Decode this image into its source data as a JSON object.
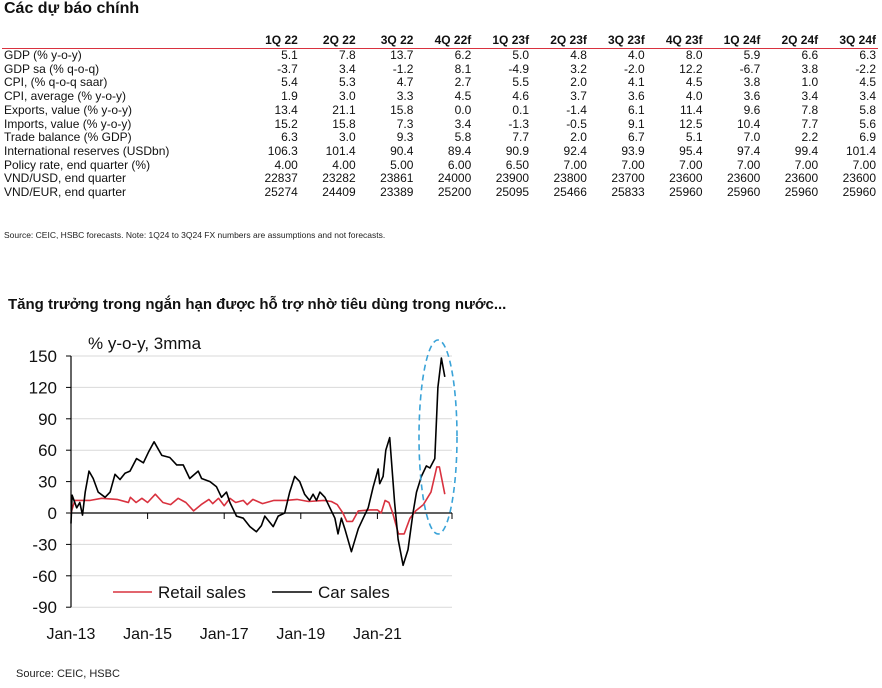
{
  "header": {
    "title": "Các dự báo chính"
  },
  "forecast_table": {
    "columns": [
      "1Q 22",
      "2Q 22",
      "3Q 22",
      "4Q 22f",
      "1Q 23f",
      "2Q 23f",
      "3Q 23f",
      "4Q 23f",
      "1Q 24f",
      "2Q 24f",
      "3Q 24f"
    ],
    "rows": [
      {
        "label": "GDP (% y-o-y)",
        "values": [
          "5.1",
          "7.8",
          "13.7",
          "6.2",
          "5.0",
          "4.8",
          "4.0",
          "8.0",
          "5.9",
          "6.6",
          "6.3"
        ]
      },
      {
        "label": "GDP sa (% q-o-q)",
        "values": [
          "-3.7",
          "3.4",
          "-1.2",
          "8.1",
          "-4.9",
          "3.2",
          "-2.0",
          "12.2",
          "-6.7",
          "3.8",
          "-2.2"
        ]
      },
      {
        "label": "CPI, (% q-o-q saar)",
        "values": [
          "5.4",
          "5.3",
          "4.7",
          "2.7",
          "5.5",
          "2.0",
          "4.1",
          "4.5",
          "3.8",
          "1.0",
          "4.5"
        ]
      },
      {
        "label": "CPI, average (% y-o-y)",
        "values": [
          "1.9",
          "3.0",
          "3.3",
          "4.5",
          "4.6",
          "3.7",
          "3.6",
          "4.0",
          "3.6",
          "3.4",
          "3.4"
        ]
      },
      {
        "label": "Exports, value (% y-o-y)",
        "values": [
          "13.4",
          "21.1",
          "15.8",
          "0.0",
          "0.1",
          "-1.4",
          "6.1",
          "11.4",
          "9.6",
          "7.8",
          "5.8"
        ]
      },
      {
        "label": "Imports, value (% y-o-y)",
        "values": [
          "15.2",
          "15.8",
          "7.3",
          "3.4",
          "-1.3",
          "-0.5",
          "9.1",
          "12.5",
          "10.4",
          "7.7",
          "5.6"
        ]
      },
      {
        "label": "Trade balance (% GDP)",
        "values": [
          "6.3",
          "3.0",
          "9.3",
          "5.8",
          "7.7",
          "2.0",
          "6.7",
          "5.1",
          "7.0",
          "2.2",
          "6.9"
        ]
      },
      {
        "label": "International reserves (USDbn)",
        "values": [
          "106.3",
          "101.4",
          "90.4",
          "89.4",
          "90.9",
          "92.4",
          "93.9",
          "95.4",
          "97.4",
          "99.4",
          "101.4"
        ]
      },
      {
        "label": "Policy rate, end quarter (%)",
        "values": [
          "4.00",
          "4.00",
          "5.00",
          "6.00",
          "6.50",
          "7.00",
          "7.00",
          "7.00",
          "7.00",
          "7.00",
          "7.00"
        ]
      },
      {
        "label": "VND/USD, end quarter",
        "values": [
          "22837",
          "23282",
          "23861",
          "24000",
          "23900",
          "23800",
          "23700",
          "23600",
          "23600",
          "23600",
          "23600"
        ]
      },
      {
        "label": "VND/EUR, end quarter",
        "values": [
          "25274",
          "24409",
          "23389",
          "25200",
          "25095",
          "25466",
          "25833",
          "25960",
          "25960",
          "25960",
          "25960"
        ]
      }
    ],
    "source": "Source: CEIC, HSBC forecasts. Note: 1Q24 to 3Q24 FX numbers are assumptions and not forecasts."
  },
  "chart_section": {
    "title": "Tăng trưởng trong ngắn hạn được hỗ trợ nhờ tiêu dùng trong nước...",
    "source": "Source: CEIC, HSBC"
  },
  "chart_data": {
    "type": "line",
    "title": "",
    "ylabel": "% y-o-y, 3mma",
    "xlabel": "",
    "ylim": [
      -90,
      150
    ],
    "yticks": [
      "150",
      "120",
      "90",
      "60",
      "30",
      "0",
      "-30",
      "-60",
      "-90"
    ],
    "xticks": [
      {
        "label": "Jan-13",
        "x": 2013
      },
      {
        "label": "Jan-15",
        "x": 2015
      },
      {
        "label": "Jan-17",
        "x": 2017
      },
      {
        "label": "Jan-19",
        "x": 2019
      },
      {
        "label": "Jan-21",
        "x": 2021
      }
    ],
    "xlim": [
      2013,
      2022.95
    ],
    "grid": true,
    "legend_position": "bottom-inside",
    "highlight": "dashed ellipse around latest 2022 values",
    "series": [
      {
        "name": "Retail sales",
        "color": "#d9323f",
        "points": [
          [
            2013.0,
            0
          ],
          [
            2013.1,
            12
          ],
          [
            2013.5,
            12
          ],
          [
            2013.8,
            14
          ],
          [
            2014.2,
            13
          ],
          [
            2014.5,
            10
          ],
          [
            2014.55,
            15
          ],
          [
            2014.7,
            10
          ],
          [
            2014.85,
            14
          ],
          [
            2015.0,
            10
          ],
          [
            2015.2,
            18
          ],
          [
            2015.4,
            10
          ],
          [
            2015.6,
            8
          ],
          [
            2015.8,
            14
          ],
          [
            2016.0,
            10
          ],
          [
            2016.2,
            2
          ],
          [
            2016.4,
            8
          ],
          [
            2016.6,
            13
          ],
          [
            2016.7,
            9
          ],
          [
            2016.85,
            14
          ],
          [
            2017.0,
            7
          ],
          [
            2017.15,
            14
          ],
          [
            2017.3,
            10
          ],
          [
            2017.5,
            12
          ],
          [
            2017.6,
            8
          ],
          [
            2017.75,
            13
          ],
          [
            2018.0,
            9
          ],
          [
            2018.3,
            12
          ],
          [
            2018.6,
            12
          ],
          [
            2018.9,
            13
          ],
          [
            2019.2,
            11
          ],
          [
            2019.6,
            12
          ],
          [
            2019.8,
            11
          ],
          [
            2019.95,
            8
          ],
          [
            2020.1,
            0
          ],
          [
            2020.2,
            -8
          ],
          [
            2020.35,
            -8
          ],
          [
            2020.5,
            2
          ],
          [
            2020.8,
            3
          ],
          [
            2021.0,
            3
          ],
          [
            2021.1,
            0
          ],
          [
            2021.2,
            12
          ],
          [
            2021.3,
            10
          ],
          [
            2021.4,
            0
          ],
          [
            2021.55,
            -20
          ],
          [
            2021.7,
            -20
          ],
          [
            2021.85,
            -5
          ],
          [
            2022.0,
            2
          ],
          [
            2022.2,
            8
          ],
          [
            2022.4,
            20
          ],
          [
            2022.55,
            44
          ],
          [
            2022.62,
            44
          ],
          [
            2022.76,
            18
          ]
        ]
      },
      {
        "name": "Car sales",
        "color": "#000000",
        "points": [
          [
            2013.0,
            -10
          ],
          [
            2013.03,
            17
          ],
          [
            2013.15,
            5
          ],
          [
            2013.23,
            10
          ],
          [
            2013.3,
            -2
          ],
          [
            2013.37,
            20
          ],
          [
            2013.47,
            40
          ],
          [
            2013.58,
            33
          ],
          [
            2013.71,
            20
          ],
          [
            2013.89,
            15
          ],
          [
            2014.02,
            20
          ],
          [
            2014.15,
            37
          ],
          [
            2014.28,
            32
          ],
          [
            2014.41,
            38
          ],
          [
            2014.54,
            40
          ],
          [
            2014.71,
            52
          ],
          [
            2014.89,
            48
          ],
          [
            2015.02,
            58
          ],
          [
            2015.17,
            68
          ],
          [
            2015.37,
            55
          ],
          [
            2015.58,
            53
          ],
          [
            2015.76,
            46
          ],
          [
            2015.93,
            46
          ],
          [
            2016.1,
            33
          ],
          [
            2016.32,
            40
          ],
          [
            2016.41,
            33
          ],
          [
            2016.63,
            30
          ],
          [
            2016.8,
            25
          ],
          [
            2016.93,
            15
          ],
          [
            2017.06,
            20
          ],
          [
            2017.15,
            10
          ],
          [
            2017.32,
            -3
          ],
          [
            2017.5,
            -5
          ],
          [
            2017.67,
            -13
          ],
          [
            2017.84,
            -18
          ],
          [
            2017.97,
            -12
          ],
          [
            2018.06,
            -3
          ],
          [
            2018.28,
            -13
          ],
          [
            2018.41,
            -3
          ],
          [
            2018.58,
            0
          ],
          [
            2018.71,
            20
          ],
          [
            2018.84,
            35
          ],
          [
            2018.97,
            30
          ],
          [
            2019.1,
            18
          ],
          [
            2019.23,
            12
          ],
          [
            2019.32,
            18
          ],
          [
            2019.41,
            12
          ],
          [
            2019.5,
            20
          ],
          [
            2019.63,
            15
          ],
          [
            2019.76,
            5
          ],
          [
            2019.89,
            -5
          ],
          [
            2019.97,
            -20
          ],
          [
            2020.06,
            -5
          ],
          [
            2020.15,
            -15
          ],
          [
            2020.32,
            -37
          ],
          [
            2020.5,
            -15
          ],
          [
            2020.63,
            -5
          ],
          [
            2020.76,
            5
          ],
          [
            2020.89,
            25
          ],
          [
            2021.02,
            42
          ],
          [
            2021.06,
            28
          ],
          [
            2021.15,
            35
          ],
          [
            2021.22,
            60
          ],
          [
            2021.32,
            72
          ],
          [
            2021.45,
            10
          ],
          [
            2021.54,
            -25
          ],
          [
            2021.67,
            -50
          ],
          [
            2021.8,
            -35
          ],
          [
            2021.93,
            0
          ],
          [
            2022.02,
            20
          ],
          [
            2022.15,
            35
          ],
          [
            2022.28,
            45
          ],
          [
            2022.37,
            43
          ],
          [
            2022.5,
            52
          ],
          [
            2022.58,
            120
          ],
          [
            2022.67,
            148
          ],
          [
            2022.76,
            130
          ]
        ]
      }
    ]
  }
}
